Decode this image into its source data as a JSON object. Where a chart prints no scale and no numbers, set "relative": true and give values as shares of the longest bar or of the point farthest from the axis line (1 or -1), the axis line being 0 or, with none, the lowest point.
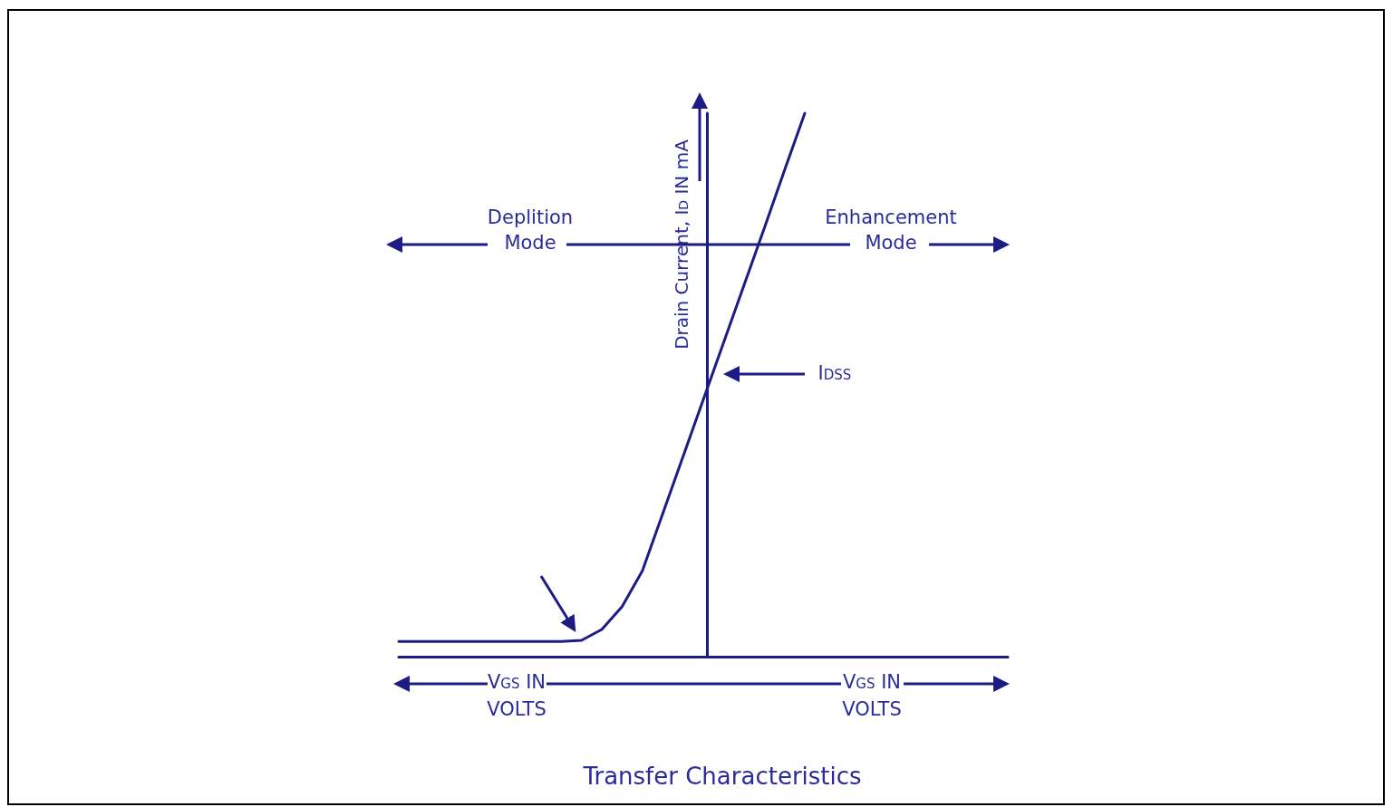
{
  "chart_data": {
    "type": "line",
    "title": "Transfer Characteristics",
    "ylabel": "Drain Current, I$_{D}$ IN mA",
    "annotations": [
      "Deplition Mode",
      "Enhancement Mode",
      "I$_{DSS}$",
      "V$_{GS}$ IN VOLTS",
      "V$_{GS}$ IN VOLTS"
    ],
    "categories": [
      null,
      null,
      null,
      null,
      null,
      null,
      null,
      null,
      null,
      null,
      null,
      null,
      null,
      null,
      null,
      null,
      null,
      null,
      null,
      null,
      null,
      null,
      null,
      null,
      null,
      null,
      null,
      null,
      null,
      null,
      null
    ],
    "values": [
      0.028,
      0.028,
      0.028,
      0.028,
      0.028,
      0.028,
      0.028,
      0.028,
      0.028,
      0.03,
      0.05,
      0.092,
      0.158,
      0.263,
      0.368,
      0.473,
      0.578,
      0.683,
      0.788,
      0.895,
      1,
      null,
      null,
      null,
      null,
      null,
      null,
      null,
      null,
      null,
      null
    ],
    "color": "#1c1c84",
    "relative": true,
    "marker": "none",
    "line_style": "solid"
  }
}
